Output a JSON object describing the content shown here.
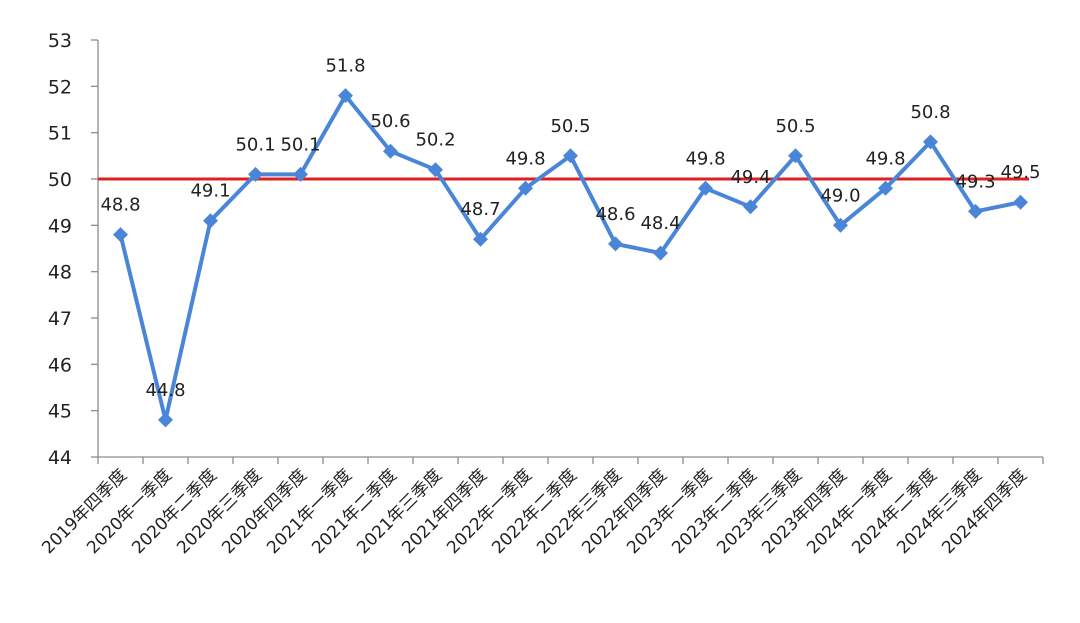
{
  "chart_data": {
    "type": "line",
    "title": "",
    "xlabel": "",
    "ylabel": "",
    "ylim": [
      44,
      53
    ],
    "yticks": [
      44,
      45,
      46,
      47,
      48,
      49,
      50,
      51,
      52,
      53
    ],
    "grid": false,
    "legend": "none",
    "categories": [
      "2019年四季度",
      "2020年一季度",
      "2020年二季度",
      "2020年三季度",
      "2020年四季度",
      "2021年一季度",
      "2021年二季度",
      "2021年三季度",
      "2021年四季度",
      "2022年一季度",
      "2022年二季度",
      "2022年三季度",
      "2022年四季度",
      "2023年一季度",
      "2023年二季度",
      "2023年三季度",
      "2023年四季度",
      "2024年一季度",
      "2024年二季度",
      "2024年三季度",
      "2024年四季度"
    ],
    "series": [
      {
        "values": [
          48.8,
          44.8,
          49.1,
          50.1,
          50.1,
          51.8,
          50.6,
          50.2,
          48.7,
          49.8,
          50.5,
          48.6,
          48.4,
          49.8,
          49.4,
          50.5,
          49.0,
          49.8,
          50.8,
          49.3,
          49.5
        ],
        "labels": [
          "48.8",
          "44.8",
          "49.1",
          "50.1",
          "50.1",
          "51.8",
          "50.6",
          "50.2",
          "48.7",
          "49.8",
          "50.5",
          "48.6",
          "48.4",
          "49.8",
          "49.4",
          "50.5",
          "49.0",
          "49.8",
          "50.8",
          "49.3",
          "49.5"
        ],
        "color": "#4a86d8",
        "marker": "diamond"
      }
    ],
    "reference_line": {
      "y": 50,
      "color": "#e02020"
    }
  }
}
